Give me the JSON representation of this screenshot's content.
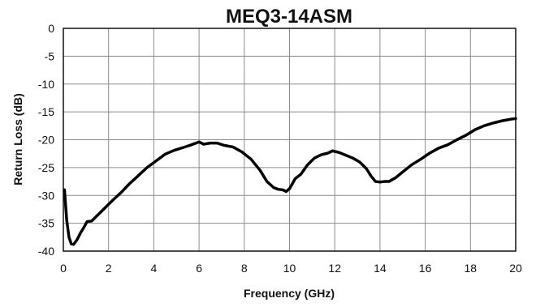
{
  "chart_data": {
    "type": "line",
    "title": "MEQ3-14ASM",
    "xlabel": "Frequency (GHz)",
    "ylabel": "Return Loss (dB)",
    "xlim": [
      0,
      20
    ],
    "ylim": [
      -40,
      0
    ],
    "xticks": [
      0,
      2,
      4,
      6,
      8,
      10,
      12,
      14,
      16,
      18,
      20
    ],
    "yticks": [
      0,
      -5,
      -10,
      -15,
      -20,
      -25,
      -30,
      -35,
      -40
    ],
    "grid": true,
    "legend": "none",
    "series": [
      {
        "color": "#000000",
        "x": [
          0.05,
          0.15,
          0.25,
          0.35,
          0.45,
          0.6,
          0.75,
          0.9,
          1.05,
          1.25,
          1.45,
          1.65,
          1.9,
          2.2,
          2.55,
          2.9,
          3.3,
          3.7,
          4.1,
          4.5,
          4.9,
          5.3,
          5.6,
          5.8,
          6.0,
          6.2,
          6.5,
          6.8,
          7.1,
          7.5,
          7.9,
          8.3,
          8.7,
          9.0,
          9.3,
          9.5,
          9.7,
          9.85,
          10.0,
          10.25,
          10.5,
          10.8,
          11.1,
          11.4,
          11.7,
          11.9,
          12.2,
          12.5,
          12.8,
          13.1,
          13.4,
          13.6,
          13.8,
          14.0,
          14.2,
          14.4,
          14.7,
          15.0,
          15.4,
          15.8,
          16.2,
          16.6,
          17.0,
          17.4,
          17.8,
          18.2,
          18.6,
          19.0,
          19.4,
          19.8,
          20.0
        ],
        "y": [
          -29.0,
          -34.5,
          -37.5,
          -38.7,
          -38.8,
          -38.0,
          -36.8,
          -35.8,
          -34.7,
          -34.6,
          -33.8,
          -33.0,
          -32.0,
          -30.8,
          -29.5,
          -28.0,
          -26.5,
          -25.0,
          -23.8,
          -22.6,
          -21.9,
          -21.4,
          -21.0,
          -20.7,
          -20.4,
          -20.8,
          -20.6,
          -20.6,
          -21.0,
          -21.3,
          -22.2,
          -23.5,
          -25.5,
          -27.5,
          -28.6,
          -28.9,
          -29.0,
          -29.3,
          -28.8,
          -27.0,
          -26.2,
          -24.5,
          -23.3,
          -22.7,
          -22.4,
          -22.0,
          -22.3,
          -22.8,
          -23.3,
          -24.0,
          -25.2,
          -26.5,
          -27.5,
          -27.6,
          -27.5,
          -27.5,
          -26.8,
          -25.8,
          -24.5,
          -23.5,
          -22.4,
          -21.5,
          -20.9,
          -20.0,
          -19.2,
          -18.2,
          -17.5,
          -17.0,
          -16.6,
          -16.3,
          -16.2
        ]
      }
    ]
  }
}
